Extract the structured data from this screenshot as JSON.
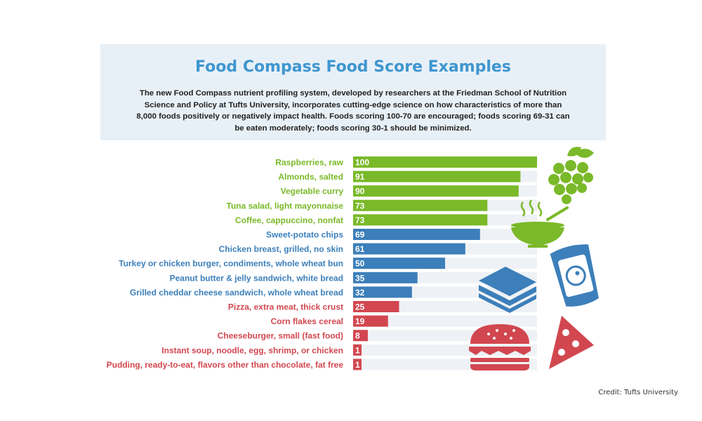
{
  "header": {
    "title": "Food Compass Food Score Examples",
    "description": "The new Food Compass nutrient profiling system, developed by researchers at the Friedman School of Nutrition Science and Policy at Tufts University, incorporates cutting-edge science on how characteristics of more than 8,000 foods positively or negatively impact health. Foods scoring 100-70 are encouraged; foods scoring 69-31 can be eaten moderately;  foods scoring 30-1 should be minimized."
  },
  "credit": "Credit: Tufts University",
  "colors": {
    "encouraged": "#7ab929",
    "moderate": "#3c7fba",
    "minimized": "#d2474f",
    "track": "#eef1f5"
  },
  "chart_data": {
    "type": "bar",
    "orientation": "horizontal",
    "xlim": [
      0,
      100
    ],
    "data_labels": true,
    "categories": [
      "Raspberries, raw",
      "Almonds, salted",
      "Vegetable curry",
      "Tuna salad, light mayonnaise",
      "Coffee, cappuccino, nonfat",
      "Sweet-potato chips",
      "Chicken breast, grilled, no skin",
      "Turkey or chicken burger, condiments, whole wheat bun",
      "Peanut butter & jelly sandwich, white bread",
      "Grilled cheddar cheese sandwich, whole wheat bread",
      "Pizza, extra meat, thick crust",
      "Corn flakes cereal",
      "Cheeseburger, small (fast food)",
      "Instant soup, noodle, egg, shrimp, or chicken",
      "Pudding, ready-to-eat, flavors other than chocolate, fat free"
    ],
    "values": [
      100,
      91,
      90,
      73,
      73,
      69,
      61,
      50,
      35,
      32,
      25,
      19,
      8,
      1,
      1
    ],
    "groups": [
      "encouraged",
      "encouraged",
      "encouraged",
      "encouraged",
      "encouraged",
      "moderate",
      "moderate",
      "moderate",
      "moderate",
      "moderate",
      "minimized",
      "minimized",
      "minimized",
      "minimized",
      "minimized"
    ]
  },
  "icons": [
    "grapes-icon",
    "soup-bowl-icon",
    "sandwich-icon",
    "chips-bag-icon",
    "burger-icon",
    "pizza-slice-icon"
  ]
}
